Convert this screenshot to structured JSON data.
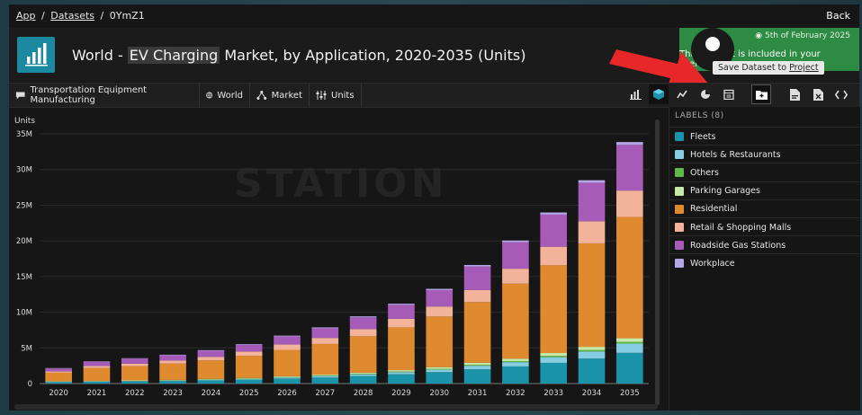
{
  "breadcrumb": {
    "app": "App",
    "sep1": "/",
    "datasets": "Datasets",
    "sep2": "/",
    "id": "0YmZ1"
  },
  "back_label": "Back",
  "title": {
    "prefix": "World - ",
    "highlight": "EV Charging",
    "suffix": " Market, by Application, 2020-2035 (Units)"
  },
  "license": {
    "date": "5th of February 2025",
    "text": "This content is included in your license."
  },
  "tooltip": {
    "prefix": "Save Dataset to ",
    "link": "Project"
  },
  "toolbar": {
    "industry": "Transportation Equipment Manufacturing",
    "region": "World",
    "market": "Market",
    "units": "Units"
  },
  "labels_panel": {
    "title": "LABELS (8)"
  },
  "watermark": "STATION",
  "colors": {
    "accent": "#1b8aa0",
    "license_green": "#2e8b43",
    "arrow": "#e82828"
  },
  "chart_data": {
    "type": "bar",
    "stacked": true,
    "ylabel": "Units",
    "ylim": [
      0,
      35000000
    ],
    "yticks": [
      "0",
      "5M",
      "10M",
      "15M",
      "20M",
      "25M",
      "30M",
      "35M"
    ],
    "categories": [
      "2020",
      "2021",
      "2022",
      "2023",
      "2024",
      "2025",
      "2026",
      "2027",
      "2028",
      "2029",
      "2030",
      "2031",
      "2032",
      "2033",
      "2034",
      "2035"
    ],
    "series": [
      {
        "name": "Fleets",
        "color": "#1b93a8",
        "values": [
          0.2,
          0.25,
          0.3,
          0.35,
          0.45,
          0.55,
          0.7,
          0.85,
          1.05,
          1.3,
          1.6,
          2.0,
          2.4,
          2.9,
          3.5,
          4.3
        ]
      },
      {
        "name": "Hotels & Restaurants",
        "color": "#85cde0",
        "values": [
          0.05,
          0.05,
          0.06,
          0.07,
          0.09,
          0.1,
          0.15,
          0.2,
          0.25,
          0.3,
          0.35,
          0.5,
          0.6,
          0.8,
          1.0,
          1.3
        ]
      },
      {
        "name": "Others",
        "color": "#5fb84a",
        "values": [
          0.02,
          0.02,
          0.02,
          0.03,
          0.03,
          0.04,
          0.05,
          0.06,
          0.07,
          0.08,
          0.1,
          0.12,
          0.15,
          0.18,
          0.2,
          0.25
        ]
      },
      {
        "name": "Parking Garages",
        "color": "#c8e8a6",
        "values": [
          0.05,
          0.05,
          0.06,
          0.07,
          0.08,
          0.1,
          0.12,
          0.14,
          0.16,
          0.2,
          0.25,
          0.3,
          0.35,
          0.4,
          0.45,
          0.5
        ]
      },
      {
        "name": "Residential",
        "color": "#e08a30",
        "values": [
          1.2,
          1.8,
          2.0,
          2.3,
          2.6,
          3.1,
          3.7,
          4.3,
          5.1,
          6.0,
          7.1,
          8.5,
          10.5,
          12.3,
          14.5,
          17.0
        ]
      },
      {
        "name": "Retail & Shopping Malls",
        "color": "#f2b39a",
        "values": [
          0.2,
          0.3,
          0.35,
          0.4,
          0.5,
          0.6,
          0.75,
          0.85,
          1.0,
          1.2,
          1.4,
          1.7,
          2.1,
          2.6,
          3.1,
          3.7
        ]
      },
      {
        "name": "Roadside Gas Stations",
        "color": "#a65bb8",
        "values": [
          0.4,
          0.6,
          0.7,
          0.75,
          0.85,
          0.95,
          1.15,
          1.35,
          1.65,
          1.95,
          2.3,
          3.3,
          3.7,
          4.5,
          5.4,
          6.4
        ]
      },
      {
        "name": "Workplace",
        "color": "#b6a6e8",
        "values": [
          0.05,
          0.05,
          0.06,
          0.07,
          0.08,
          0.09,
          0.1,
          0.12,
          0.14,
          0.16,
          0.18,
          0.2,
          0.25,
          0.3,
          0.35,
          0.4
        ]
      }
    ],
    "value_scale": "millions"
  }
}
